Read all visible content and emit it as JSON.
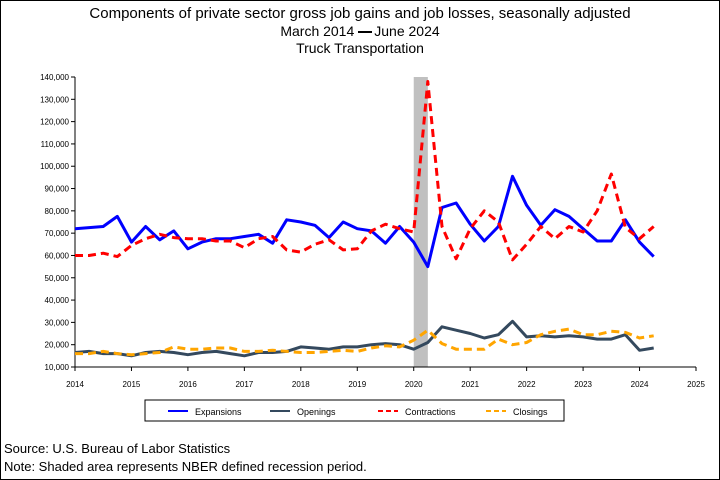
{
  "header": {
    "title": "Components of private sector gross job gains and job losses, seasonally adjusted",
    "period_start": "March 2014",
    "period_end": "June 2024",
    "subtitle": "Truck Transportation"
  },
  "footer": {
    "source": "Source: U.S. Bureau of Labor Statistics",
    "note": "Note: Shaded area represents NBER defined recession period."
  },
  "colors": {
    "expansions": "#0000ff",
    "openings": "#34495e",
    "contractions": "#ff0000",
    "closings": "#ffa500",
    "recession": "#c0c0c0"
  },
  "chart_data": {
    "type": "line",
    "xlim": [
      2014,
      2025
    ],
    "ylim": [
      10000,
      140000
    ],
    "x_ticks": [
      "2014",
      "2015",
      "2016",
      "2017",
      "2018",
      "2019",
      "2020",
      "2021",
      "2022",
      "2023",
      "2024",
      "2025"
    ],
    "y_ticks": [
      "10,000",
      "20,000",
      "30,000",
      "40,000",
      "50,000",
      "60,000",
      "70,000",
      "80,000",
      "90,000",
      "100,000",
      "110,000",
      "120,000",
      "130,000",
      "140,000"
    ],
    "recession": [
      2020.0,
      2020.25
    ],
    "legend": {
      "placement": "bottom"
    },
    "x": [
      2014.0,
      2014.25,
      2014.5,
      2014.75,
      2015.0,
      2015.25,
      2015.5,
      2015.75,
      2016.0,
      2016.25,
      2016.5,
      2016.75,
      2017.0,
      2017.25,
      2017.5,
      2017.75,
      2018.0,
      2018.25,
      2018.5,
      2018.75,
      2019.0,
      2019.25,
      2019.5,
      2019.75,
      2020.0,
      2020.25,
      2020.5,
      2020.75,
      2021.0,
      2021.25,
      2021.5,
      2021.75,
      2022.0,
      2022.25,
      2022.5,
      2022.75,
      2023.0,
      2023.25,
      2023.5,
      2023.75,
      2024.0,
      2024.25
    ],
    "series": [
      {
        "name": "Expansions",
        "style": "solid",
        "values": [
          72000,
          72500,
          73000,
          77500,
          66000,
          73000,
          67000,
          71000,
          63000,
          66000,
          67500,
          67500,
          68500,
          69500,
          65500,
          76000,
          75000,
          73500,
          68000,
          75000,
          72000,
          71000,
          65500,
          73000,
          66000,
          55000,
          81500,
          83500,
          74000,
          66500,
          73000,
          95500,
          82500,
          73500,
          80500,
          77500,
          72000,
          66500,
          66500,
          76000,
          66000,
          59500
        ]
      },
      {
        "name": "Openings",
        "style": "solid",
        "values": [
          16500,
          17000,
          16000,
          16000,
          15000,
          16500,
          17000,
          16500,
          15500,
          16500,
          17000,
          16000,
          15000,
          16500,
          16500,
          17000,
          19000,
          18500,
          18000,
          19000,
          19000,
          20000,
          20500,
          20000,
          18000,
          21000,
          28000,
          26500,
          25000,
          23000,
          24500,
          30500,
          23500,
          24000,
          23500,
          24000,
          23500,
          22500,
          22500,
          24500,
          17500,
          18500
        ]
      },
      {
        "name": "Contractions",
        "style": "dashed",
        "values": [
          60000,
          60000,
          61000,
          59500,
          64500,
          67500,
          69500,
          68000,
          67500,
          67500,
          66500,
          66500,
          63500,
          67500,
          68500,
          62500,
          61500,
          65000,
          67000,
          62500,
          63000,
          71000,
          74000,
          72000,
          70500,
          138000,
          73000,
          58500,
          72000,
          80000,
          75000,
          58000,
          65000,
          73000,
          67500,
          73000,
          70500,
          80000,
          96500,
          72500,
          67500,
          73000
        ]
      },
      {
        "name": "Closings",
        "style": "dashed",
        "values": [
          16000,
          16000,
          17000,
          16000,
          15500,
          16000,
          16500,
          19000,
          18000,
          18000,
          18500,
          18500,
          17000,
          17000,
          17500,
          17000,
          16500,
          16500,
          17000,
          17500,
          17000,
          18500,
          19500,
          19000,
          22000,
          26500,
          20500,
          18000,
          18000,
          18000,
          22500,
          20000,
          21000,
          24500,
          26000,
          27000,
          24500,
          24500,
          26000,
          25500,
          23000,
          24000
        ]
      }
    ]
  }
}
